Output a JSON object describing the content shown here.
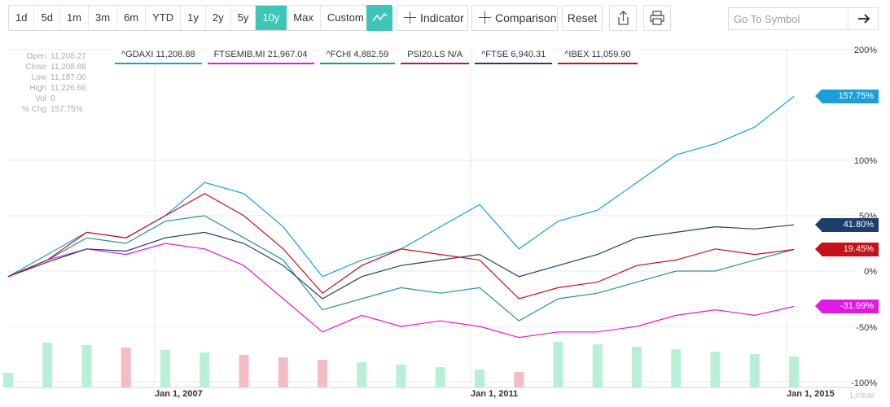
{
  "toolbar": {
    "ranges": [
      "1d",
      "5d",
      "1m",
      "3m",
      "6m",
      "YTD",
      "1y",
      "2y",
      "5y",
      "10y",
      "Max",
      "Custom"
    ],
    "active_range": "10y",
    "chart_type_icon": "line-chart-icon",
    "indicator_label": "Indicator",
    "comparison_label": "Comparison",
    "reset_label": "Reset",
    "share_icon": "share-icon",
    "print_icon": "print-icon",
    "symbol_placeholder": "Go To Symbol",
    "go_icon": "arrow-right-icon"
  },
  "ohlc": [
    {
      "label": "Open",
      "value": "11,208.27"
    },
    {
      "label": "Close",
      "value": "11,208.88"
    },
    {
      "label": "Low",
      "value": "11,187.00"
    },
    {
      "label": "High",
      "value": "11,226.66"
    },
    {
      "label": "Vol",
      "value": "0"
    },
    {
      "label": "% Chg",
      "value": "157.75%"
    }
  ],
  "legend": [
    {
      "text": "^GDAXI 11,208.88",
      "color": "#1a9fd6"
    },
    {
      "text": "FTSEMIB.MI 21,967.04",
      "color": "#e01adf"
    },
    {
      "text": "^FCHI 4,882.59",
      "color": "#2a8f9e"
    },
    {
      "text": "PSI20.LS N/A",
      "color": "#9b1d8a"
    },
    {
      "text": "^FTSE 6,940.31",
      "color": "#1d3f6e"
    },
    {
      "text": "^IBEX 11,059.90",
      "color": "#c4121a"
    }
  ],
  "scale_label": "Linear",
  "chart_data": {
    "type": "line",
    "x_axis": {
      "ticks": [
        "Jan 1, 2007",
        "Jan 1, 2011",
        "Jan 1, 2015"
      ],
      "range": [
        "2005-01-01",
        "2015-01-01"
      ]
    },
    "y_axis": {
      "unit": "%",
      "ticks": [
        "200%",
        "100%",
        "50%",
        "0%",
        "-50%",
        "-100%"
      ],
      "range": [
        -100,
        200
      ],
      "grid": true
    },
    "x": [
      "2005-01",
      "2005-07",
      "2006-01",
      "2006-07",
      "2007-01",
      "2007-07",
      "2008-01",
      "2008-07",
      "2009-01",
      "2009-07",
      "2010-01",
      "2010-07",
      "2011-01",
      "2011-07",
      "2012-01",
      "2012-07",
      "2013-01",
      "2013-07",
      "2014-01",
      "2014-07",
      "2015-01"
    ],
    "series": [
      {
        "name": "^GDAXI",
        "color": "#1a9fd6",
        "values": [
          -5,
          15,
          35,
          30,
          50,
          80,
          70,
          40,
          -5,
          10,
          20,
          40,
          60,
          20,
          45,
          55,
          80,
          105,
          115,
          130,
          157.75
        ]
      },
      {
        "name": "FTSEMIB.MI",
        "color": "#e01adf",
        "values": [
          -5,
          10,
          20,
          15,
          25,
          20,
          5,
          -25,
          -55,
          -40,
          -50,
          -45,
          -50,
          -60,
          -55,
          -55,
          -50,
          -40,
          -35,
          -40,
          -31.99
        ]
      },
      {
        "name": "^FCHI",
        "color": "#2a8f9e",
        "values": [
          -5,
          10,
          30,
          25,
          45,
          50,
          30,
          10,
          -35,
          -25,
          -15,
          -20,
          -15,
          -45,
          -25,
          -20,
          -10,
          0,
          0,
          10,
          19.45
        ]
      },
      {
        "name": "^FTSE",
        "color": "#1d3f6e",
        "values": [
          -5,
          8,
          20,
          18,
          30,
          35,
          25,
          5,
          -25,
          -5,
          5,
          10,
          15,
          -5,
          5,
          15,
          30,
          35,
          40,
          38,
          41.8
        ]
      },
      {
        "name": "^IBEX",
        "color": "#c4121a",
        "values": [
          -5,
          10,
          35,
          30,
          50,
          70,
          50,
          20,
          -20,
          5,
          20,
          15,
          10,
          -25,
          -15,
          -10,
          5,
          10,
          20,
          15,
          19.45
        ]
      }
    ],
    "last_values": [
      {
        "text": "157.75%",
        "value": 157.75,
        "color": "#1a9fd6"
      },
      {
        "text": "41.80%",
        "value": 41.8,
        "color": "#1d3f6e"
      },
      {
        "text": "19.45%",
        "value": 19.45,
        "color": "#c4121a"
      },
      {
        "text": "-31.99%",
        "value": -31.99,
        "color": "#e01adf"
      }
    ],
    "volume_colors": {
      "up": "#b9efd6",
      "down": "#f4bcc4"
    }
  }
}
